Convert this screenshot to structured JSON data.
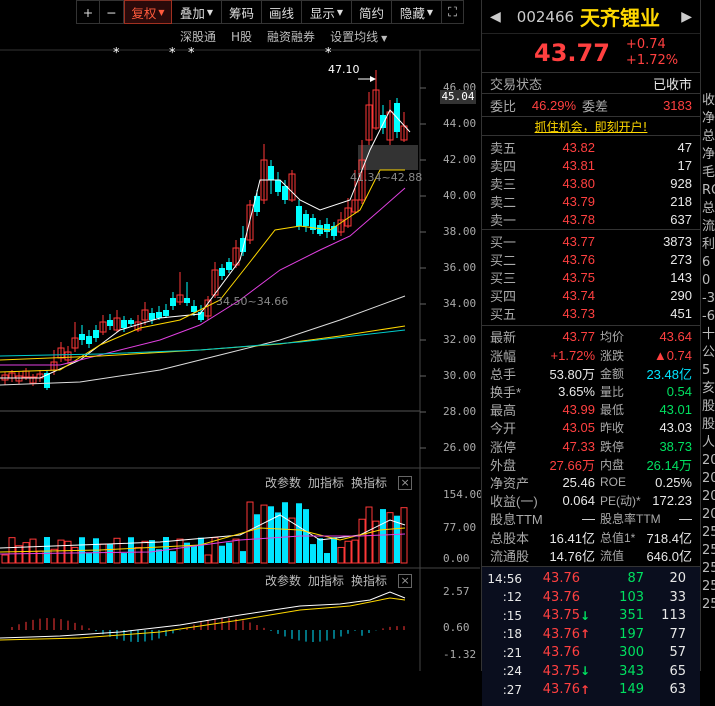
{
  "toolbar": {
    "items": [
      "+",
      "−",
      "复权",
      "叠加",
      "筹码",
      "画线",
      "显示",
      "简约",
      "隐藏"
    ],
    "expand_icon": "expand-icon"
  },
  "subbar": [
    "深股通",
    "H股",
    "融资融券",
    "设置均线"
  ],
  "chart": {
    "y_labels": [
      "46.00",
      "44.00",
      "42.00",
      "40.00",
      "38.00",
      "36.00",
      "34.00",
      "32.00",
      "30.00",
      "28.00",
      "26.00"
    ],
    "current_price_tag": "45.04",
    "annotation_high": "47.10",
    "annotation_range": "41.34~42.88",
    "annotation_low": "34.50~34.66",
    "star": "*"
  },
  "indicator1": {
    "buttons": [
      "改参数",
      "加指标",
      "换指标"
    ],
    "close": "×",
    "y_labels": [
      "154.00",
      "77.00",
      "0.00"
    ]
  },
  "indicator2": {
    "buttons": [
      "改参数",
      "加指标",
      "换指标"
    ],
    "close": "×",
    "y_labels": [
      "2.57",
      "0.60",
      "-1.32"
    ]
  },
  "stock": {
    "code": "002466",
    "name": "天齐锂业",
    "price": "43.77",
    "change": "+0.74",
    "change_pct": "+1.72%",
    "status_label": "交易状态",
    "status": "已收市",
    "ratio_label": "委比",
    "ratio": "46.29%",
    "diff_label": "委差",
    "diff": "3183",
    "promo": "抓住机会，即刻开户!"
  },
  "asks": [
    {
      "label": "卖五",
      "price": "43.82",
      "vol": "47"
    },
    {
      "label": "卖四",
      "price": "43.81",
      "vol": "17"
    },
    {
      "label": "卖三",
      "price": "43.80",
      "vol": "928"
    },
    {
      "label": "卖二",
      "price": "43.79",
      "vol": "218"
    },
    {
      "label": "卖一",
      "price": "43.78",
      "vol": "637"
    }
  ],
  "bids": [
    {
      "label": "买一",
      "price": "43.77",
      "vol": "3873"
    },
    {
      "label": "买二",
      "price": "43.76",
      "vol": "273"
    },
    {
      "label": "买三",
      "price": "43.75",
      "vol": "143"
    },
    {
      "label": "买四",
      "price": "43.74",
      "vol": "290"
    },
    {
      "label": "买五",
      "price": "43.73",
      "vol": "451"
    }
  ],
  "stats": [
    {
      "l1": "最新",
      "v1": "43.77",
      "c1": "red",
      "l2": "均价",
      "v2": "43.64",
      "c2": "red"
    },
    {
      "l1": "涨幅",
      "v1": "+1.72%",
      "c1": "red",
      "l2": "涨跌",
      "v2": "▲0.74",
      "c2": "red"
    },
    {
      "l1": "总手",
      "v1": "53.80万",
      "c1": "white",
      "l2": "金额",
      "v2": "23.48亿",
      "c2": "cyan"
    },
    {
      "l1": "换手*",
      "v1": "3.65%",
      "c1": "white",
      "l2": "量比",
      "v2": "0.54",
      "c2": "green"
    },
    {
      "l1": "最高",
      "v1": "43.99",
      "c1": "red",
      "l2": "最低",
      "v2": "43.01",
      "c2": "green"
    },
    {
      "l1": "今开",
      "v1": "43.05",
      "c1": "red",
      "l2": "昨收",
      "v2": "43.03",
      "c2": "white"
    },
    {
      "l1": "涨停",
      "v1": "47.33",
      "c1": "red",
      "l2": "跌停",
      "v2": "38.73",
      "c2": "green"
    },
    {
      "l1": "外盘",
      "v1": "27.66万",
      "c1": "red",
      "l2": "内盘",
      "v2": "26.14万",
      "c2": "green"
    },
    {
      "l1": "净资产",
      "v1": "25.46",
      "c1": "white",
      "l2": "ROE",
      "v2": "0.25%",
      "c2": "white"
    },
    {
      "l1": "收益(一)",
      "v1": "0.064",
      "c1": "white",
      "l2": "PE(动)*",
      "v2": "172.23",
      "c2": "white"
    },
    {
      "l1": "股息TTM",
      "v1": "—",
      "c1": "white",
      "l2": "股息率TTM",
      "v2": "—",
      "c2": "white"
    },
    {
      "l1": "总股本",
      "v1": "16.41亿",
      "c1": "white",
      "l2": "总值1*",
      "v2": "718.4亿",
      "c2": "white"
    },
    {
      "l1": "流通股",
      "v1": "14.76亿",
      "c1": "white",
      "l2": "流值",
      "v2": "646.0亿",
      "c2": "white"
    }
  ],
  "trades": [
    {
      "time": "14:56",
      "price": "43.76",
      "arrow": "",
      "vol": "87",
      "n": "20"
    },
    {
      "time": ":12",
      "price": "43.76",
      "arrow": "",
      "vol": "103",
      "n": "33"
    },
    {
      "time": ":15",
      "price": "43.75",
      "arrow": "↓",
      "vol": "351",
      "n": "113"
    },
    {
      "time": ":18",
      "price": "43.76",
      "arrow": "↑",
      "vol": "197",
      "n": "77"
    },
    {
      "time": ":21",
      "price": "43.76",
      "arrow": "",
      "vol": "300",
      "n": "57"
    },
    {
      "time": ":24",
      "price": "43.75",
      "arrow": "↓",
      "vol": "343",
      "n": "65"
    },
    {
      "time": ":27",
      "price": "43.76",
      "arrow": "↑",
      "vol": "149",
      "n": "63"
    }
  ],
  "farright": [
    "收",
    "净",
    "总",
    "净",
    "毛",
    "RO",
    "总",
    "流",
    "利",
    "",
    "6",
    "0",
    "-3",
    "-6",
    "十",
    "公",
    "5亥",
    "股",
    "股",
    "人",
    "20",
    "20",
    "20",
    "20",
    "25",
    "25",
    "25",
    "25",
    "25"
  ]
}
